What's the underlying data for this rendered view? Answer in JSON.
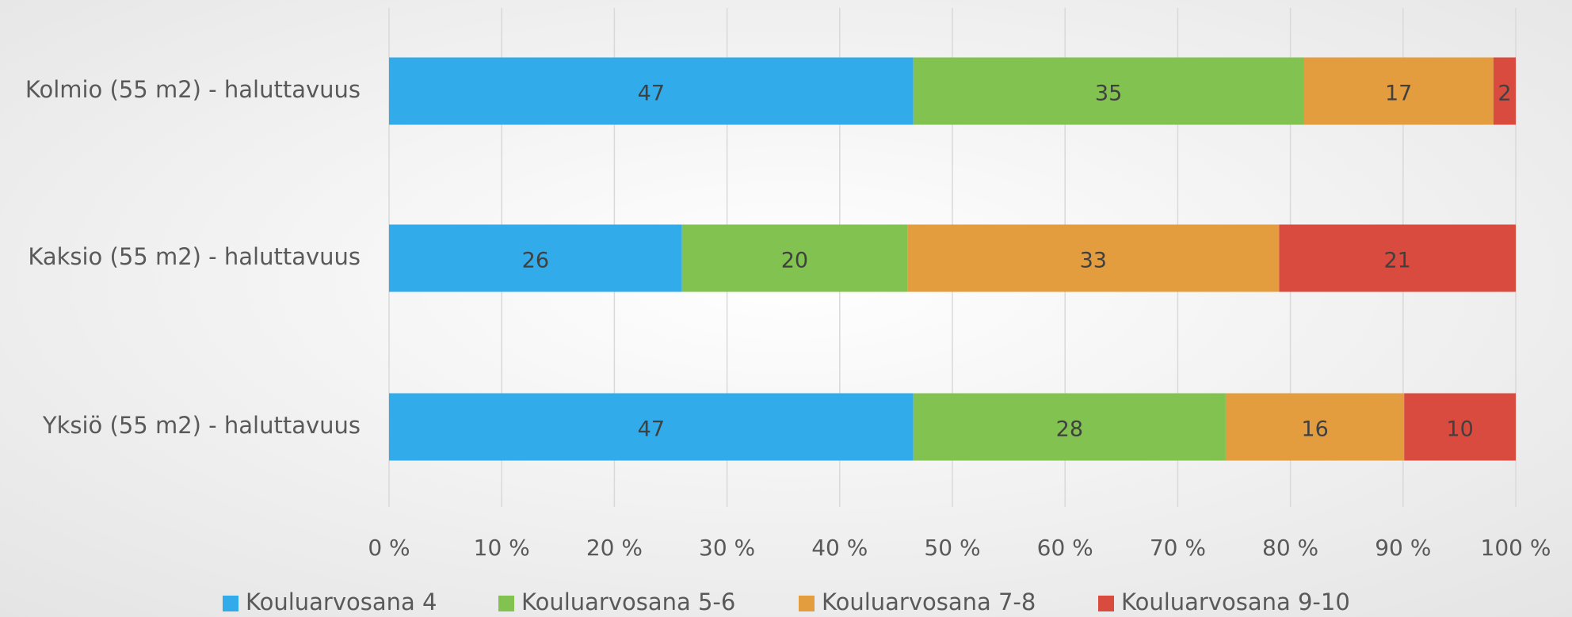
{
  "chart_data": {
    "type": "bar",
    "orientation": "horizontal",
    "stacking": "percent",
    "categories": [
      "Kolmio (55 m2) - haluttavuus",
      "Kaksio (55 m2) - haluttavuus",
      "Yksiö (55 m2) - haluttavuus"
    ],
    "series": [
      {
        "name": "Kouluarvosana 4",
        "color": "#32abeb",
        "values": [
          47,
          26,
          47
        ]
      },
      {
        "name": "Kouluarvosana 5-6",
        "color": "#82c250",
        "values": [
          35,
          20,
          28
        ]
      },
      {
        "name": "Kouluarvosana 7-8",
        "color": "#e39d3e",
        "values": [
          17,
          33,
          16
        ]
      },
      {
        "name": "Kouluarvosana 9-10",
        "color": "#d84b3e",
        "values": [
          2,
          21,
          10
        ]
      }
    ],
    "xlim": [
      0,
      100
    ],
    "xticks": [
      {
        "value": 0,
        "label": "0 %"
      },
      {
        "value": 10,
        "label": "10 %"
      },
      {
        "value": 20,
        "label": "20 %"
      },
      {
        "value": 30,
        "label": "30 %"
      },
      {
        "value": 40,
        "label": "40 %"
      },
      {
        "value": 50,
        "label": "50 %"
      },
      {
        "value": 60,
        "label": "60 %"
      },
      {
        "value": 70,
        "label": "70 %"
      },
      {
        "value": 80,
        "label": "80 %"
      },
      {
        "value": 90,
        "label": "90 %"
      },
      {
        "value": 100,
        "label": "100 %"
      }
    ],
    "grid": true,
    "legend": "bottom"
  }
}
